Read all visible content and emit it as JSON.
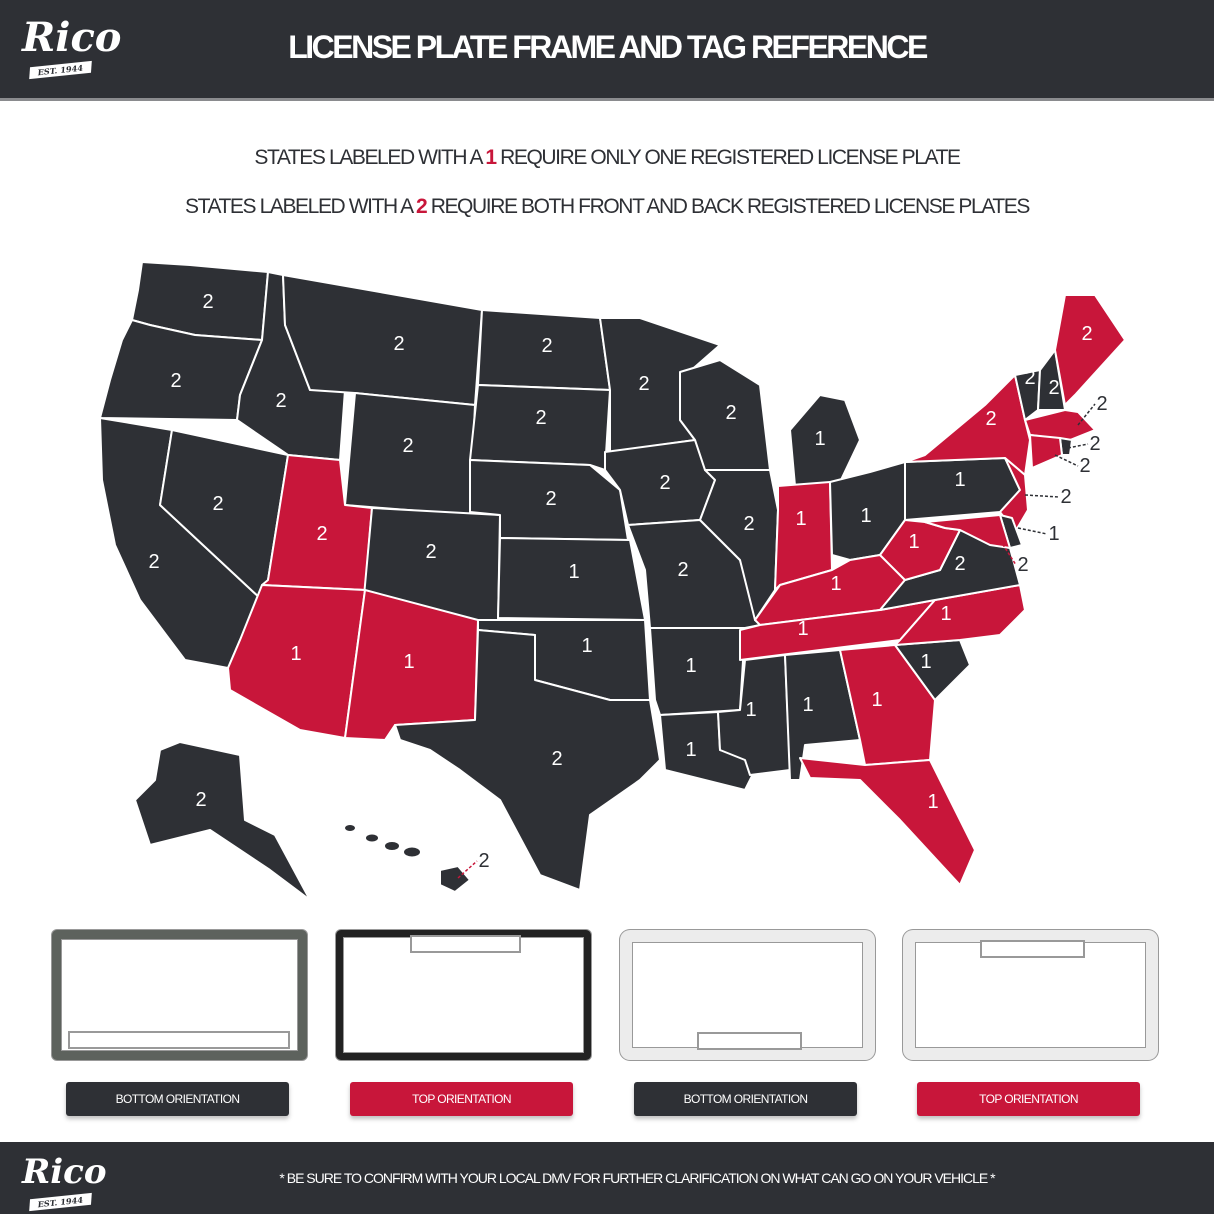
{
  "header": {
    "logo": "Rico",
    "logo_tagline": "EST. 1944",
    "title": "LICENSE PLATE FRAME AND TAG REFERENCE"
  },
  "legend": {
    "line1_pre": "STATES LABELED WITH A",
    "line1_num": "1",
    "line1_post": "REQUIRE ONLY ONE REGISTERED LICENSE PLATE",
    "line2_pre": "STATES LABELED WITH A",
    "line2_num": "2",
    "line2_post": "REQUIRE BOTH FRONT AND BACK REGISTERED LICENSE PLATES"
  },
  "colors": {
    "dark": "#2e3035",
    "red": "#c8163a",
    "border": "#ffffff"
  },
  "map": {
    "states": [
      {
        "code": "WA",
        "plates": "2",
        "fill": "dark"
      },
      {
        "code": "OR",
        "plates": "2",
        "fill": "dark"
      },
      {
        "code": "CA",
        "plates": "2",
        "fill": "dark"
      },
      {
        "code": "NV",
        "plates": "2",
        "fill": "dark"
      },
      {
        "code": "ID",
        "plates": "2",
        "fill": "dark"
      },
      {
        "code": "MT",
        "plates": "2",
        "fill": "dark"
      },
      {
        "code": "WY",
        "plates": "2",
        "fill": "dark"
      },
      {
        "code": "UT",
        "plates": "2",
        "fill": "red"
      },
      {
        "code": "CO",
        "plates": "2",
        "fill": "dark"
      },
      {
        "code": "AZ",
        "plates": "1",
        "fill": "red"
      },
      {
        "code": "NM",
        "plates": "1",
        "fill": "red"
      },
      {
        "code": "ND",
        "plates": "2",
        "fill": "dark"
      },
      {
        "code": "SD",
        "plates": "2",
        "fill": "dark"
      },
      {
        "code": "NE",
        "plates": "2",
        "fill": "dark"
      },
      {
        "code": "KS",
        "plates": "1",
        "fill": "dark"
      },
      {
        "code": "OK",
        "plates": "1",
        "fill": "dark"
      },
      {
        "code": "TX",
        "plates": "2",
        "fill": "dark"
      },
      {
        "code": "MN",
        "plates": "2",
        "fill": "dark"
      },
      {
        "code": "IA",
        "plates": "2",
        "fill": "dark"
      },
      {
        "code": "MO",
        "plates": "2",
        "fill": "dark"
      },
      {
        "code": "AR",
        "plates": "1",
        "fill": "dark"
      },
      {
        "code": "LA",
        "plates": "1",
        "fill": "dark"
      },
      {
        "code": "WI",
        "plates": "2",
        "fill": "dark"
      },
      {
        "code": "IL",
        "plates": "2",
        "fill": "dark"
      },
      {
        "code": "MI",
        "plates": "1",
        "fill": "dark"
      },
      {
        "code": "IN",
        "plates": "1",
        "fill": "red"
      },
      {
        "code": "OH",
        "plates": "1",
        "fill": "dark"
      },
      {
        "code": "KY",
        "plates": "1",
        "fill": "red"
      },
      {
        "code": "TN",
        "plates": "1",
        "fill": "red"
      },
      {
        "code": "MS",
        "plates": "1",
        "fill": "dark"
      },
      {
        "code": "AL",
        "plates": "1",
        "fill": "dark"
      },
      {
        "code": "GA",
        "plates": "1",
        "fill": "red"
      },
      {
        "code": "FL",
        "plates": "1",
        "fill": "red"
      },
      {
        "code": "SC",
        "plates": "1",
        "fill": "dark"
      },
      {
        "code": "NC",
        "plates": "1",
        "fill": "red"
      },
      {
        "code": "VA",
        "plates": "2",
        "fill": "dark"
      },
      {
        "code": "WV",
        "plates": "1",
        "fill": "red"
      },
      {
        "code": "PA",
        "plates": "1",
        "fill": "dark"
      },
      {
        "code": "NY",
        "plates": "2",
        "fill": "red"
      },
      {
        "code": "VT",
        "plates": "2",
        "fill": "dark"
      },
      {
        "code": "NH",
        "plates": "2",
        "fill": "dark"
      },
      {
        "code": "ME",
        "plates": "2",
        "fill": "red"
      },
      {
        "code": "MA",
        "plates": "2",
        "fill": "red"
      },
      {
        "code": "RI",
        "plates": "2",
        "fill": "dark"
      },
      {
        "code": "CT",
        "plates": "2",
        "fill": "red"
      },
      {
        "code": "NJ",
        "plates": "2",
        "fill": "red"
      },
      {
        "code": "DE",
        "plates": "1",
        "fill": "dark"
      },
      {
        "code": "MD",
        "plates": "2",
        "fill": "red"
      },
      {
        "code": "AK",
        "plates": "2",
        "fill": "dark"
      },
      {
        "code": "HI",
        "plates": "2",
        "fill": "dark"
      }
    ]
  },
  "frames": [
    {
      "label": "BOTTOM ORIENTATION",
      "button_color": "dark",
      "finish": "gunmetal"
    },
    {
      "label": "TOP ORIENTATION",
      "button_color": "red",
      "finish": "chrome"
    },
    {
      "label": "BOTTOM ORIENTATION",
      "button_color": "dark",
      "finish": "white"
    },
    {
      "label": "TOP ORIENTATION",
      "button_color": "red",
      "finish": "white"
    }
  ],
  "footer": {
    "logo": "Rico",
    "logo_tagline": "EST. 1944",
    "note": "* BE SURE TO CONFIRM WITH YOUR LOCAL DMV FOR FURTHER CLARIFICATION ON WHAT CAN GO ON YOUR VEHICLE *"
  }
}
